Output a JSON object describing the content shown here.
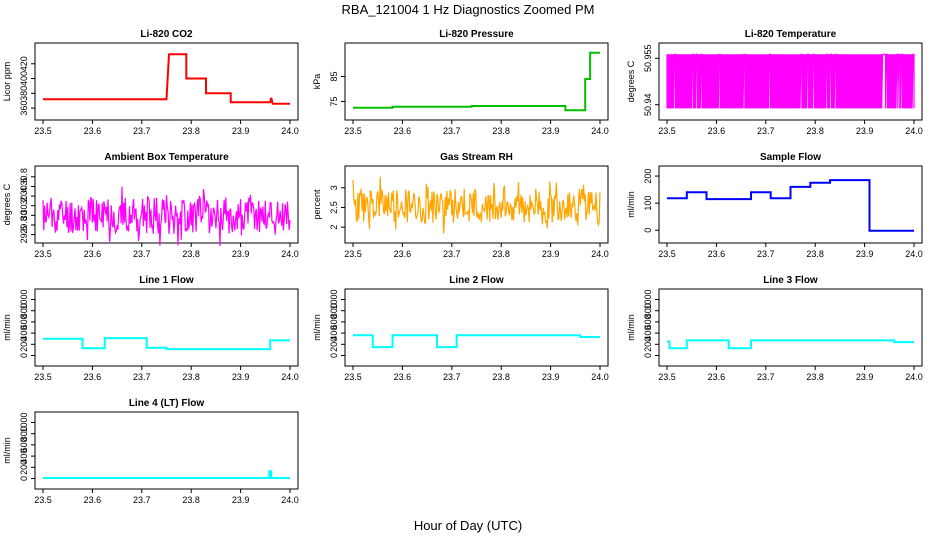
{
  "title": "RBA_121004  1 Hz Diagnostics Zoomed PM",
  "xlabel": "Hour of Day (UTC)",
  "colors": {
    "co2": "#ff0000",
    "pressure": "#00c000",
    "magenta": "#ff00ff",
    "orange": "#ffa500",
    "blue": "#0000ff",
    "cyan": "#00ffff"
  },
  "chart_data": [
    {
      "type": "line",
      "title": "Li-820 CO2",
      "ylabel": "Licor ppm",
      "xlim": [
        23.5,
        24.0
      ],
      "ylim": [
        352,
        440
      ],
      "xticks": [
        "23.5",
        "23.6",
        "23.7",
        "23.8",
        "23.9",
        "24.0"
      ],
      "yticks": [
        360,
        380,
        400,
        420
      ],
      "color": "#ff0000",
      "style": "step",
      "series": [
        {
          "x": [
            23.5,
            23.75,
            23.755,
            23.79,
            23.79,
            23.83,
            23.83,
            23.88,
            23.88,
            23.96,
            23.962,
            23.965,
            24.0
          ],
          "y": [
            372,
            372,
            433,
            433,
            400,
            400,
            380,
            380,
            368,
            368,
            374,
            366,
            366
          ]
        }
      ]
    },
    {
      "type": "line",
      "title": "Li-820 Pressure",
      "ylabel": "kPa",
      "xlim": [
        23.5,
        24.0
      ],
      "ylim": [
        70,
        96
      ],
      "xticks": [
        "23.5",
        "23.6",
        "23.7",
        "23.8",
        "23.9",
        "24.0"
      ],
      "yticks": [
        75,
        85
      ],
      "color": "#00c000",
      "style": "step",
      "series": [
        {
          "x": [
            23.5,
            23.58,
            23.58,
            23.74,
            23.74,
            23.93,
            23.93,
            23.97,
            23.97,
            23.98,
            23.98,
            24.0
          ],
          "y": [
            72.5,
            72.5,
            72.9,
            72.9,
            73.2,
            73.2,
            71.5,
            71.5,
            84,
            84,
            94.5,
            94.5
          ]
        }
      ]
    },
    {
      "type": "line",
      "title": "Li-820 Temperature",
      "ylabel": "degrees C",
      "xlim": [
        23.5,
        24.0
      ],
      "ylim": [
        50.937,
        50.958
      ],
      "xticks": [
        "23.5",
        "23.6",
        "23.7",
        "23.8",
        "23.9",
        "24.0"
      ],
      "yticks": [
        50.94,
        50.955
      ],
      "color": "#ff00ff",
      "style": "toggle",
      "series": [
        {
          "low": 50.9388,
          "high": 50.9563
        }
      ]
    },
    {
      "type": "line",
      "title": "Ambient Box Temperature",
      "ylabel": "degrees C",
      "xlim": [
        23.5,
        24.0
      ],
      "ylim": [
        29.55,
        30.9
      ],
      "xticks": [
        "23.5",
        "23.6",
        "23.7",
        "23.8",
        "23.9",
        "24.0"
      ],
      "yticks": [
        29.6,
        29.8,
        30.0,
        30.2,
        30.4,
        30.6,
        30.8
      ],
      "color": "#ff00ff",
      "style": "noise",
      "series": [
        {
          "center": 30.0,
          "amplitude": 0.65,
          "seed": 11
        }
      ]
    },
    {
      "type": "line",
      "title": "Gas Stream RH",
      "ylabel": "percent",
      "xlim": [
        23.5,
        24.0
      ],
      "ylim": [
        1.75,
        3.4
      ],
      "xticks": [
        "23.5",
        "23.6",
        "23.7",
        "23.8",
        "23.9",
        "24.0"
      ],
      "yticks": [
        2.0,
        2.5,
        3.0
      ],
      "color": "#ffa500",
      "style": "noise",
      "series": [
        {
          "center": 2.55,
          "amplitude": 0.75,
          "seed": 23
        }
      ]
    },
    {
      "type": "line",
      "title": "Sample Flow",
      "ylabel": "ml/min",
      "xlim": [
        23.5,
        24.0
      ],
      "ylim": [
        -25,
        215
      ],
      "xticks": [
        "23.5",
        "23.6",
        "23.7",
        "23.8",
        "23.9",
        "24.0"
      ],
      "yticks": [
        0,
        100,
        200
      ],
      "color": "#0000ff",
      "style": "step",
      "series": [
        {
          "x": [
            23.5,
            23.54,
            23.54,
            23.58,
            23.58,
            23.67,
            23.67,
            23.71,
            23.71,
            23.75,
            23.75,
            23.79,
            23.79,
            23.83,
            23.83,
            23.91,
            23.91,
            24.0
          ],
          "y": [
            118,
            118,
            140,
            140,
            115,
            115,
            140,
            140,
            118,
            118,
            160,
            160,
            175,
            175,
            185,
            185,
            -2,
            -2
          ]
        }
      ]
    },
    {
      "type": "line",
      "title": "Line 1 Flow",
      "ylabel": "ml/min",
      "xlim": [
        23.5,
        24.0
      ],
      "ylim": [
        -80,
        1080
      ],
      "xticks": [
        "23.5",
        "23.6",
        "23.7",
        "23.8",
        "23.9",
        "24.0"
      ],
      "yticks": [
        0,
        200,
        400,
        600,
        800,
        1000
      ],
      "color": "#00ffff",
      "style": "step",
      "series": [
        {
          "x": [
            23.5,
            23.58,
            23.58,
            23.625,
            23.625,
            23.71,
            23.71,
            23.75,
            23.75,
            23.96,
            23.96,
            24.0
          ],
          "y": [
            300,
            300,
            130,
            130,
            310,
            310,
            140,
            140,
            115,
            115,
            270,
            270
          ]
        }
      ]
    },
    {
      "type": "line",
      "title": "Line 2 Flow",
      "ylabel": "ml/min",
      "xlim": [
        23.5,
        24.0
      ],
      "ylim": [
        -80,
        1080
      ],
      "xticks": [
        "23.5",
        "23.6",
        "23.7",
        "23.8",
        "23.9",
        "24.0"
      ],
      "yticks": [
        0,
        200,
        400,
        600,
        800,
        1000
      ],
      "color": "#00ffff",
      "style": "step",
      "series": [
        {
          "x": [
            23.5,
            23.54,
            23.54,
            23.58,
            23.58,
            23.67,
            23.67,
            23.71,
            23.71,
            23.96,
            23.96,
            24.0
          ],
          "y": [
            360,
            360,
            150,
            150,
            360,
            360,
            150,
            150,
            360,
            360,
            330,
            330
          ]
        }
      ]
    },
    {
      "type": "line",
      "title": "Line 3 Flow",
      "ylabel": "ml/min",
      "xlim": [
        23.5,
        24.0
      ],
      "ylim": [
        -80,
        1080
      ],
      "xticks": [
        "23.5",
        "23.6",
        "23.7",
        "23.8",
        "23.9",
        "24.0"
      ],
      "yticks": [
        0,
        200,
        400,
        600,
        800,
        1000
      ],
      "color": "#00ffff",
      "style": "step",
      "series": [
        {
          "x": [
            23.5,
            23.505,
            23.505,
            23.54,
            23.54,
            23.625,
            23.625,
            23.67,
            23.67,
            23.96,
            23.96,
            24.0
          ],
          "y": [
            250,
            250,
            130,
            130,
            270,
            270,
            130,
            130,
            270,
            270,
            240,
            240
          ]
        }
      ]
    },
    {
      "type": "line",
      "title": "Line 4 (LT) Flow",
      "ylabel": "ml/min",
      "xlim": [
        23.5,
        24.0
      ],
      "ylim": [
        -80,
        1080
      ],
      "xticks": [
        "23.5",
        "23.6",
        "23.7",
        "23.8",
        "23.9",
        "24.0"
      ],
      "yticks": [
        0,
        200,
        400,
        600,
        800,
        1000
      ],
      "color": "#00ffff",
      "style": "step",
      "series": [
        {
          "x": [
            23.5,
            23.958,
            23.958,
            23.962,
            23.962,
            24.0
          ],
          "y": [
            10,
            10,
            130,
            130,
            10,
            10
          ]
        }
      ]
    }
  ]
}
